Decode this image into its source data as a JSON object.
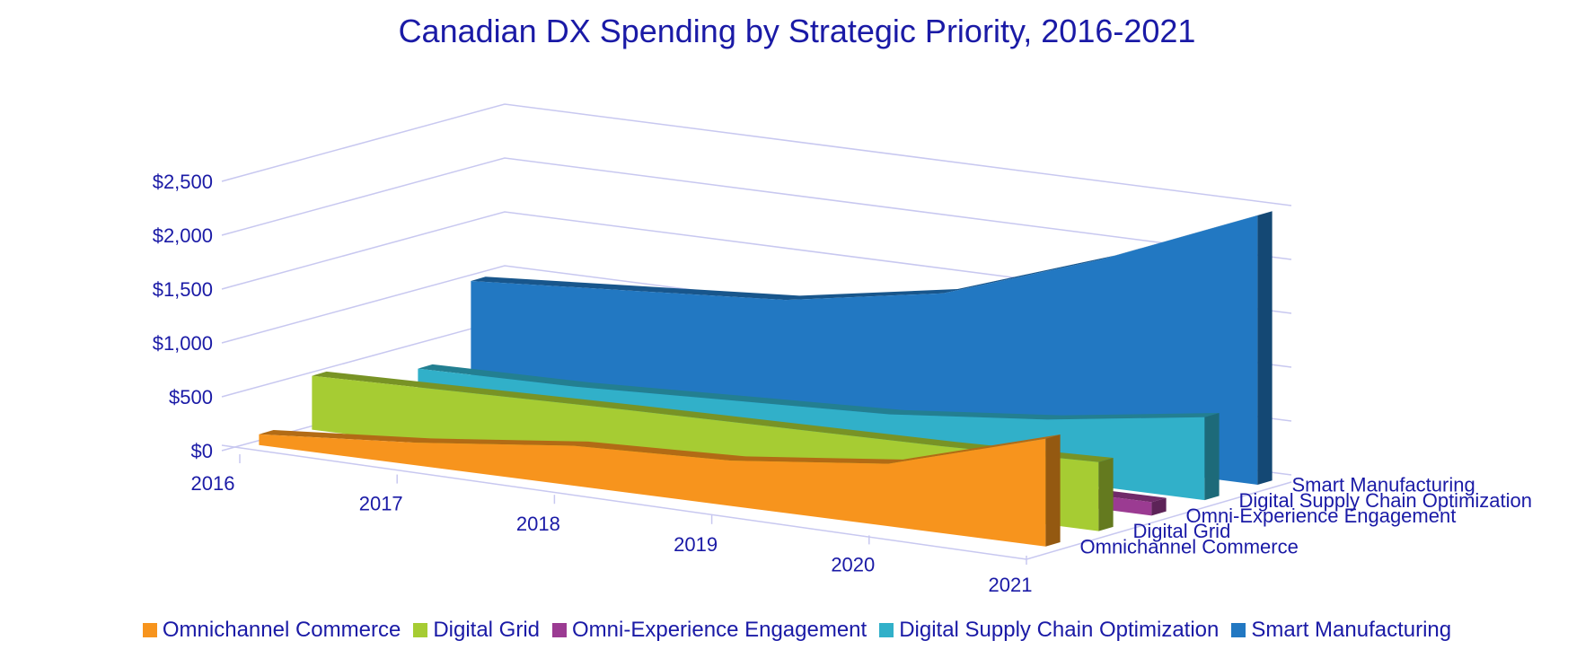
{
  "chart_data": {
    "type": "area",
    "title": "Canadian DX Spending by Strategic Priority, 2016-2021",
    "categories": [
      "2016",
      "2017",
      "2018",
      "2019",
      "2020",
      "2021"
    ],
    "y_ticks": [
      "$0",
      "$500",
      "$1,000",
      "$1,500",
      "$2,000",
      "$2,500"
    ],
    "ylim": [
      0,
      2500
    ],
    "legend_position": "bottom",
    "gridlines": true,
    "series": [
      {
        "name": "Omnichannel Commerce",
        "color": "#f7941d",
        "values": [
          100,
          210,
          370,
          420,
          580,
          1000
        ]
      },
      {
        "name": "Digital Grid",
        "color": "#a6cc33",
        "values": [
          500,
          530,
          560,
          580,
          600,
          640
        ]
      },
      {
        "name": "Omni-Experience Engagement",
        "color": "#9b3b92",
        "values": [
          100,
          110,
          115,
          120,
          120,
          125
        ]
      },
      {
        "name": "Digital Supply Chain Optimization",
        "color": "#31b0c9",
        "values": [
          280,
          300,
          360,
          420,
          560,
          770
        ]
      },
      {
        "name": "Smart Manufacturing",
        "color": "#2278c2",
        "values": [
          950,
          1050,
          1150,
          1400,
          1900,
          2500
        ]
      }
    ]
  }
}
